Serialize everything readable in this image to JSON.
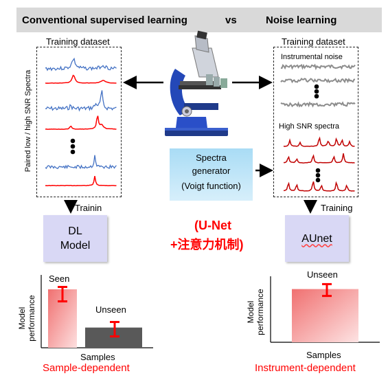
{
  "header": {
    "left_title": "Conventional supervised learning",
    "vs": "vs",
    "right_title": "Noise learning"
  },
  "left_panel": {
    "dataset_label": "Training dataset",
    "side_label": "Paired low / high SNR Spectra",
    "training_label": "Trainin",
    "model_label": "DL\nModel"
  },
  "right_panel": {
    "dataset_label": "Training dataset",
    "noise_label": "Instrumental noise",
    "high_snr_label": "High SNR spectra",
    "training_label": "Training",
    "model_label": "AUnet"
  },
  "center": {
    "generator_line1": "Spectra",
    "generator_line2": "generator",
    "generator_line3": "(Voigt function)",
    "unet_line1": "(U-Net",
    "unet_line2": "+注意力机制)"
  },
  "left_chart": {
    "ylabel_line1": "Model",
    "ylabel_line2": "performance",
    "xlabel": "Samples",
    "seen_label": "Seen",
    "unseen_label": "Unseen",
    "caption": "Sample-dependent"
  },
  "right_chart": {
    "ylabel_line1": "Model",
    "ylabel_line2": "performance",
    "xlabel": "Samples",
    "unseen_label": "Unseen",
    "caption": "Instrument-dependent"
  },
  "chart_data": [
    {
      "type": "bar",
      "categories": [
        "Seen",
        "Unseen"
      ],
      "values": [
        0.81,
        0.28
      ],
      "error": [
        0.1,
        0.1
      ],
      "xlabel": "Samples",
      "ylabel": "Model performance",
      "colors": [
        "#f26b6b",
        "#595959"
      ]
    },
    {
      "type": "bar",
      "categories": [
        "Unseen"
      ],
      "values": [
        0.9
      ],
      "error": [
        0.1
      ],
      "xlabel": "Samples",
      "ylabel": "Model performance",
      "colors": [
        "#f26b6b"
      ]
    }
  ],
  "colors": {
    "blue": "#4472c4",
    "red": "#ff0000",
    "gray": "#8c8c8c",
    "dark_red": "#c00000"
  }
}
